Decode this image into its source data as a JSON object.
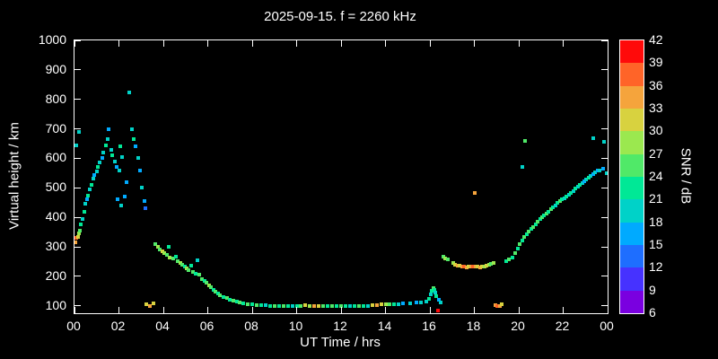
{
  "chart_data": {
    "type": "scatter",
    "title": "2025-09-15. f = 2260 kHz",
    "xlabel": "UT Time / hrs",
    "ylabel": "Virtual height / km",
    "background": "#000000",
    "text_color": "#ffffff",
    "grid": false,
    "xlim": [
      0,
      24
    ],
    "ylim": [
      75,
      1000
    ],
    "xticks": [
      {
        "value": 0,
        "label": "00"
      },
      {
        "value": 2,
        "label": "02"
      },
      {
        "value": 4,
        "label": "04"
      },
      {
        "value": 6,
        "label": "06"
      },
      {
        "value": 8,
        "label": "08"
      },
      {
        "value": 10,
        "label": "10"
      },
      {
        "value": 12,
        "label": "12"
      },
      {
        "value": 14,
        "label": "14"
      },
      {
        "value": 16,
        "label": "16"
      },
      {
        "value": 18,
        "label": "18"
      },
      {
        "value": 20,
        "label": "20"
      },
      {
        "value": 22,
        "label": "22"
      },
      {
        "value": 24,
        "label": "00"
      }
    ],
    "yticks": [
      100,
      200,
      300,
      400,
      500,
      600,
      700,
      800,
      900,
      1000
    ],
    "colorbar": {
      "label": "SNR / dB",
      "levels": [
        6,
        9,
        12,
        15,
        18,
        21,
        24,
        27,
        30,
        33,
        36,
        39,
        42
      ],
      "colors": [
        "#7A00E0",
        "#4632FF",
        "#1E6EFF",
        "#00AAFF",
        "#00D2C8",
        "#00E896",
        "#50E968",
        "#9BE84F",
        "#D8D23F",
        "#F5A43C",
        "#FF6428",
        "#FF0A0A"
      ]
    },
    "points": [
      [
        0.05,
        315,
        33
      ],
      [
        0.08,
        645,
        18
      ],
      [
        0.1,
        330,
        36
      ],
      [
        0.15,
        335,
        30
      ],
      [
        0.2,
        345,
        27
      ],
      [
        0.2,
        690,
        18
      ],
      [
        0.25,
        355,
        24
      ],
      [
        0.3,
        375,
        21
      ],
      [
        0.35,
        395,
        18
      ],
      [
        0.45,
        420,
        21
      ],
      [
        0.5,
        445,
        18
      ],
      [
        0.55,
        460,
        15
      ],
      [
        0.6,
        475,
        21
      ],
      [
        0.7,
        495,
        18
      ],
      [
        0.75,
        510,
        21
      ],
      [
        0.85,
        530,
        18
      ],
      [
        0.9,
        545,
        15
      ],
      [
        1.0,
        555,
        18
      ],
      [
        1.05,
        570,
        21
      ],
      [
        1.15,
        585,
        18
      ],
      [
        1.25,
        600,
        15
      ],
      [
        1.3,
        620,
        18
      ],
      [
        1.4,
        645,
        21
      ],
      [
        1.5,
        665,
        18
      ],
      [
        1.55,
        700,
        15
      ],
      [
        1.65,
        630,
        18
      ],
      [
        1.7,
        610,
        21
      ],
      [
        1.8,
        590,
        18
      ],
      [
        1.9,
        570,
        15
      ],
      [
        1.95,
        460,
        15
      ],
      [
        2.0,
        560,
        18
      ],
      [
        2.05,
        640,
        21
      ],
      [
        2.1,
        440,
        18
      ],
      [
        2.15,
        605,
        18
      ],
      [
        2.25,
        470,
        15
      ],
      [
        2.35,
        520,
        15
      ],
      [
        2.45,
        825,
        18
      ],
      [
        2.6,
        700,
        18
      ],
      [
        2.65,
        665,
        21
      ],
      [
        2.75,
        640,
        15
      ],
      [
        2.85,
        600,
        18
      ],
      [
        2.95,
        560,
        15
      ],
      [
        3.05,
        500,
        18
      ],
      [
        3.15,
        455,
        15
      ],
      [
        3.2,
        430,
        12
      ],
      [
        3.25,
        105,
        30
      ],
      [
        3.4,
        100,
        33
      ],
      [
        3.55,
        108,
        30
      ],
      [
        3.65,
        310,
        24
      ],
      [
        3.75,
        300,
        27
      ],
      [
        3.85,
        292,
        24
      ],
      [
        3.95,
        285,
        30
      ],
      [
        4.05,
        278,
        27
      ],
      [
        4.15,
        272,
        24
      ],
      [
        4.25,
        300,
        21
      ],
      [
        4.3,
        265,
        27
      ],
      [
        4.45,
        262,
        24
      ],
      [
        4.55,
        268,
        21
      ],
      [
        4.65,
        252,
        24
      ],
      [
        4.75,
        245,
        27
      ],
      [
        4.85,
        238,
        24
      ],
      [
        4.95,
        232,
        21
      ],
      [
        5.05,
        228,
        27
      ],
      [
        5.15,
        222,
        24
      ],
      [
        5.25,
        235,
        21
      ],
      [
        5.35,
        215,
        24
      ],
      [
        5.45,
        210,
        21
      ],
      [
        5.55,
        255,
        18
      ],
      [
        5.6,
        205,
        24
      ],
      [
        5.75,
        192,
        24
      ],
      [
        5.85,
        185,
        21
      ],
      [
        5.95,
        178,
        24
      ],
      [
        6.05,
        170,
        27
      ],
      [
        6.15,
        162,
        24
      ],
      [
        6.25,
        155,
        21
      ],
      [
        6.35,
        148,
        24
      ],
      [
        6.45,
        142,
        21
      ],
      [
        6.55,
        136,
        24
      ],
      [
        6.7,
        130,
        21
      ],
      [
        6.85,
        126,
        24
      ],
      [
        7.0,
        121,
        21
      ],
      [
        7.15,
        117,
        24
      ],
      [
        7.3,
        114,
        21
      ],
      [
        7.45,
        111,
        24
      ],
      [
        7.6,
        108,
        21
      ],
      [
        7.8,
        106,
        24
      ],
      [
        8.0,
        104,
        21
      ],
      [
        8.2,
        103,
        24
      ],
      [
        8.4,
        102,
        21
      ],
      [
        8.6,
        101,
        18
      ],
      [
        8.8,
        100,
        21
      ],
      [
        9.0,
        100,
        24
      ],
      [
        9.2,
        100,
        21
      ],
      [
        9.4,
        100,
        24
      ],
      [
        9.6,
        100,
        21
      ],
      [
        9.8,
        100,
        18
      ],
      [
        10.0,
        100,
        21
      ],
      [
        10.2,
        100,
        24
      ],
      [
        10.4,
        102,
        30
      ],
      [
        10.6,
        100,
        27
      ],
      [
        10.8,
        100,
        33
      ],
      [
        11.0,
        100,
        30
      ],
      [
        11.2,
        100,
        24
      ],
      [
        11.4,
        100,
        21
      ],
      [
        11.6,
        100,
        24
      ],
      [
        11.8,
        100,
        21
      ],
      [
        12.0,
        98,
        24
      ],
      [
        12.2,
        98,
        21
      ],
      [
        12.4,
        98,
        18
      ],
      [
        12.6,
        98,
        21
      ],
      [
        12.8,
        100,
        24
      ],
      [
        13.0,
        100,
        21
      ],
      [
        13.2,
        100,
        18
      ],
      [
        13.4,
        102,
        30
      ],
      [
        13.6,
        102,
        33
      ],
      [
        13.8,
        104,
        30
      ],
      [
        14.0,
        104,
        27
      ],
      [
        14.2,
        105,
        24
      ],
      [
        14.4,
        106,
        21
      ],
      [
        14.6,
        106,
        18
      ],
      [
        14.8,
        108,
        15
      ],
      [
        15.1,
        108,
        18
      ],
      [
        15.4,
        110,
        15
      ],
      [
        15.6,
        112,
        18
      ],
      [
        15.85,
        115,
        18
      ],
      [
        15.95,
        125,
        21
      ],
      [
        16.05,
        140,
        18
      ],
      [
        16.1,
        152,
        21
      ],
      [
        16.15,
        160,
        24
      ],
      [
        16.2,
        155,
        21
      ],
      [
        16.25,
        145,
        18
      ],
      [
        16.3,
        132,
        21
      ],
      [
        16.36,
        84,
        42
      ],
      [
        16.4,
        120,
        15
      ],
      [
        16.5,
        112,
        18
      ],
      [
        16.6,
        268,
        24
      ],
      [
        16.7,
        262,
        27
      ],
      [
        16.8,
        258,
        24
      ],
      [
        17.05,
        245,
        27
      ],
      [
        17.15,
        240,
        30
      ],
      [
        17.25,
        237,
        33
      ],
      [
        17.35,
        235,
        30
      ],
      [
        17.45,
        233,
        33
      ],
      [
        17.55,
        232,
        36
      ],
      [
        17.65,
        231,
        33
      ],
      [
        17.75,
        232,
        30
      ],
      [
        17.85,
        233,
        33
      ],
      [
        17.95,
        234,
        36
      ],
      [
        18.0,
        483,
        33
      ],
      [
        18.05,
        233,
        33
      ],
      [
        18.15,
        232,
        30
      ],
      [
        18.25,
        231,
        33
      ],
      [
        18.35,
        232,
        30
      ],
      [
        18.45,
        234,
        27
      ],
      [
        18.55,
        236,
        30
      ],
      [
        18.65,
        238,
        27
      ],
      [
        18.75,
        241,
        24
      ],
      [
        18.85,
        245,
        27
      ],
      [
        18.95,
        102,
        33
      ],
      [
        19.05,
        100,
        36
      ],
      [
        19.15,
        100,
        33
      ],
      [
        19.25,
        104,
        30
      ],
      [
        19.45,
        252,
        21
      ],
      [
        19.55,
        258,
        24
      ],
      [
        19.7,
        265,
        21
      ],
      [
        19.85,
        278,
        24
      ],
      [
        19.95,
        295,
        21
      ],
      [
        20.05,
        310,
        24
      ],
      [
        20.15,
        322,
        21
      ],
      [
        20.15,
        572,
        18
      ],
      [
        20.25,
        333,
        24
      ],
      [
        20.3,
        660,
        24
      ],
      [
        20.35,
        342,
        21
      ],
      [
        20.45,
        352,
        24
      ],
      [
        20.55,
        360,
        21
      ],
      [
        20.65,
        368,
        24
      ],
      [
        20.75,
        377,
        21
      ],
      [
        20.85,
        386,
        24
      ],
      [
        20.95,
        394,
        21
      ],
      [
        21.05,
        400,
        24
      ],
      [
        21.15,
        406,
        21
      ],
      [
        21.25,
        412,
        24
      ],
      [
        21.35,
        420,
        21
      ],
      [
        21.45,
        428,
        24
      ],
      [
        21.55,
        434,
        21
      ],
      [
        21.65,
        441,
        18
      ],
      [
        21.75,
        448,
        21
      ],
      [
        21.85,
        454,
        24
      ],
      [
        21.95,
        460,
        21
      ],
      [
        22.05,
        465,
        18
      ],
      [
        22.15,
        470,
        21
      ],
      [
        22.25,
        476,
        18
      ],
      [
        22.35,
        482,
        21
      ],
      [
        22.45,
        490,
        18
      ],
      [
        22.55,
        497,
        21
      ],
      [
        22.65,
        503,
        18
      ],
      [
        22.75,
        510,
        21
      ],
      [
        22.85,
        516,
        18
      ],
      [
        22.95,
        522,
        15
      ],
      [
        23.05,
        528,
        18
      ],
      [
        23.15,
        534,
        21
      ],
      [
        23.25,
        540,
        18
      ],
      [
        23.35,
        547,
        15
      ],
      [
        23.35,
        668,
        18
      ],
      [
        23.45,
        553,
        18
      ],
      [
        23.55,
        558,
        15
      ],
      [
        23.65,
        560,
        18
      ],
      [
        23.8,
        565,
        15
      ],
      [
        23.85,
        655,
        18
      ],
      [
        23.95,
        550,
        18
      ]
    ]
  }
}
